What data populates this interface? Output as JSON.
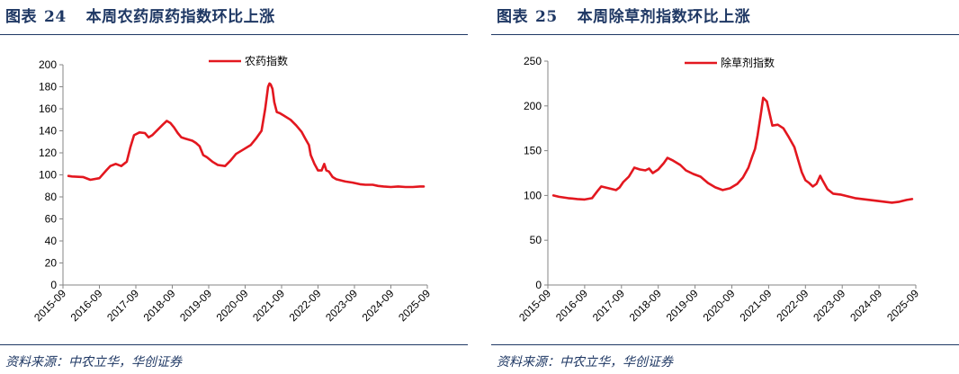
{
  "panels": [
    {
      "fig_label": "图表",
      "fig_num": "24",
      "fig_title": "本周农药原药指数环比上涨",
      "source": "资料来源：中农立华，华创证券",
      "chart_data": {
        "type": "line",
        "title": "",
        "xlabel": "",
        "ylabel": "",
        "ylim": [
          0,
          200
        ],
        "yticks": [
          0,
          20,
          40,
          60,
          80,
          100,
          120,
          140,
          160,
          180,
          200
        ],
        "xticks": [
          "2015-09",
          "2016-09",
          "2017-09",
          "2018-09",
          "2019-09",
          "2020-09",
          "2021-09",
          "2022-09",
          "2023-09",
          "2024-09",
          "2025-09"
        ],
        "xlim": [
          2015.75,
          2025.75
        ],
        "legend_position": "top",
        "grid": false,
        "series": [
          {
            "name": "农药指数",
            "color": "#e3171f",
            "x": [
              2015.9,
              2016.0,
              2016.3,
              2016.5,
              2016.75,
              2016.95,
              2017.05,
              2017.2,
              2017.35,
              2017.5,
              2017.6,
              2017.7,
              2017.85,
              2018.0,
              2018.1,
              2018.2,
              2018.35,
              2018.5,
              2018.6,
              2018.7,
              2018.8,
              2018.9,
              2019.0,
              2019.1,
              2019.3,
              2019.4,
              2019.5,
              2019.6,
              2019.7,
              2019.85,
              2020.0,
              2020.2,
              2020.35,
              2020.5,
              2020.7,
              2020.9,
              2021.05,
              2021.2,
              2021.3,
              2021.38,
              2021.42,
              2021.45,
              2021.5,
              2021.55,
              2021.62,
              2021.7,
              2021.8,
              2022.0,
              2022.15,
              2022.3,
              2022.4,
              2022.5,
              2022.55,
              2022.65,
              2022.75,
              2022.85,
              2022.92,
              2022.98,
              2023.05,
              2023.15,
              2023.25,
              2023.5,
              2023.7,
              2023.9,
              2024.05,
              2024.25,
              2024.4,
              2024.55,
              2024.75,
              2024.95,
              2025.15,
              2025.35,
              2025.55,
              2025.65
            ],
            "values": [
              99,
              98.5,
              98,
              95.5,
              97,
              104.5,
              108,
              110,
              108,
              112,
              125,
              136,
              138.5,
              138,
              134,
              136,
              141,
              146,
              149,
              147,
              143,
              138,
              134,
              133,
              131,
              129,
              126,
              118,
              116,
              112,
              109,
              108,
              113,
              119,
              123,
              127,
              133,
              140,
              160,
              180,
              183,
              182,
              178,
              166,
              157,
              156,
              154,
              150,
              145,
              139,
              133,
              127,
              118,
              110,
              104,
              104,
              110,
              104,
              103,
              98,
              96,
              94,
              93,
              91.5,
              91,
              91,
              90,
              89.5,
              89,
              89.5,
              89,
              89,
              89.5,
              89.5
            ]
          }
        ]
      }
    },
    {
      "fig_label": "图表",
      "fig_num": "25",
      "fig_title": "本周除草剂指数环比上涨",
      "source": "资料来源：中农立华，华创证券",
      "chart_data": {
        "type": "line",
        "title": "",
        "xlabel": "",
        "ylabel": "",
        "ylim": [
          0,
          250
        ],
        "yticks": [
          0,
          50,
          100,
          150,
          200,
          250
        ],
        "xticks": [
          "2015-09",
          "2016-09",
          "2017-09",
          "2018-09",
          "2019-09",
          "2020-09",
          "2021-09",
          "2022-09",
          "2023-09",
          "2024-09",
          "2025-09"
        ],
        "xlim": [
          2015.75,
          2025.75
        ],
        "legend_position": "top",
        "grid": false,
        "series": [
          {
            "name": "除草剂指数",
            "color": "#e3171f",
            "x": [
              2015.9,
              2016.05,
              2016.3,
              2016.55,
              2016.75,
              2016.95,
              2017.1,
              2017.2,
              2017.4,
              2017.6,
              2017.7,
              2017.8,
              2017.95,
              2018.1,
              2018.25,
              2018.4,
              2018.5,
              2018.6,
              2018.75,
              2018.9,
              2019.0,
              2019.15,
              2019.35,
              2019.5,
              2019.6,
              2019.7,
              2019.9,
              2020.1,
              2020.3,
              2020.5,
              2020.7,
              2020.9,
              2021.05,
              2021.2,
              2021.3,
              2021.38,
              2021.45,
              2021.55,
              2021.6,
              2021.7,
              2021.85,
              2022.0,
              2022.15,
              2022.3,
              2022.45,
              2022.55,
              2022.65,
              2022.75,
              2022.85,
              2022.95,
              2023.05,
              2023.15,
              2023.2,
              2023.35,
              2023.5,
              2023.7,
              2023.9,
              2024.1,
              2024.3,
              2024.5,
              2024.7,
              2024.9,
              2025.1,
              2025.3,
              2025.5,
              2025.65
            ],
            "values": [
              100,
              98.5,
              97,
              96,
              95.5,
              97,
              105,
              110,
              108,
              106,
              109,
              115,
              121,
              131,
              129,
              128,
              130,
              125,
              129,
              136,
              142,
              139,
              134,
              128,
              126,
              124,
              121,
              114,
              109,
              106,
              108,
              113,
              120,
              131,
              143,
              152,
              167,
              194,
              209,
              205,
              178,
              179,
              175,
              165,
              154,
              140,
              126,
              117,
              114,
              110,
              113,
              122,
              118,
              107,
              102,
              101,
              99,
              97,
              96,
              95,
              94,
              93,
              92,
              93,
              95,
              96
            ]
          }
        ]
      }
    }
  ]
}
